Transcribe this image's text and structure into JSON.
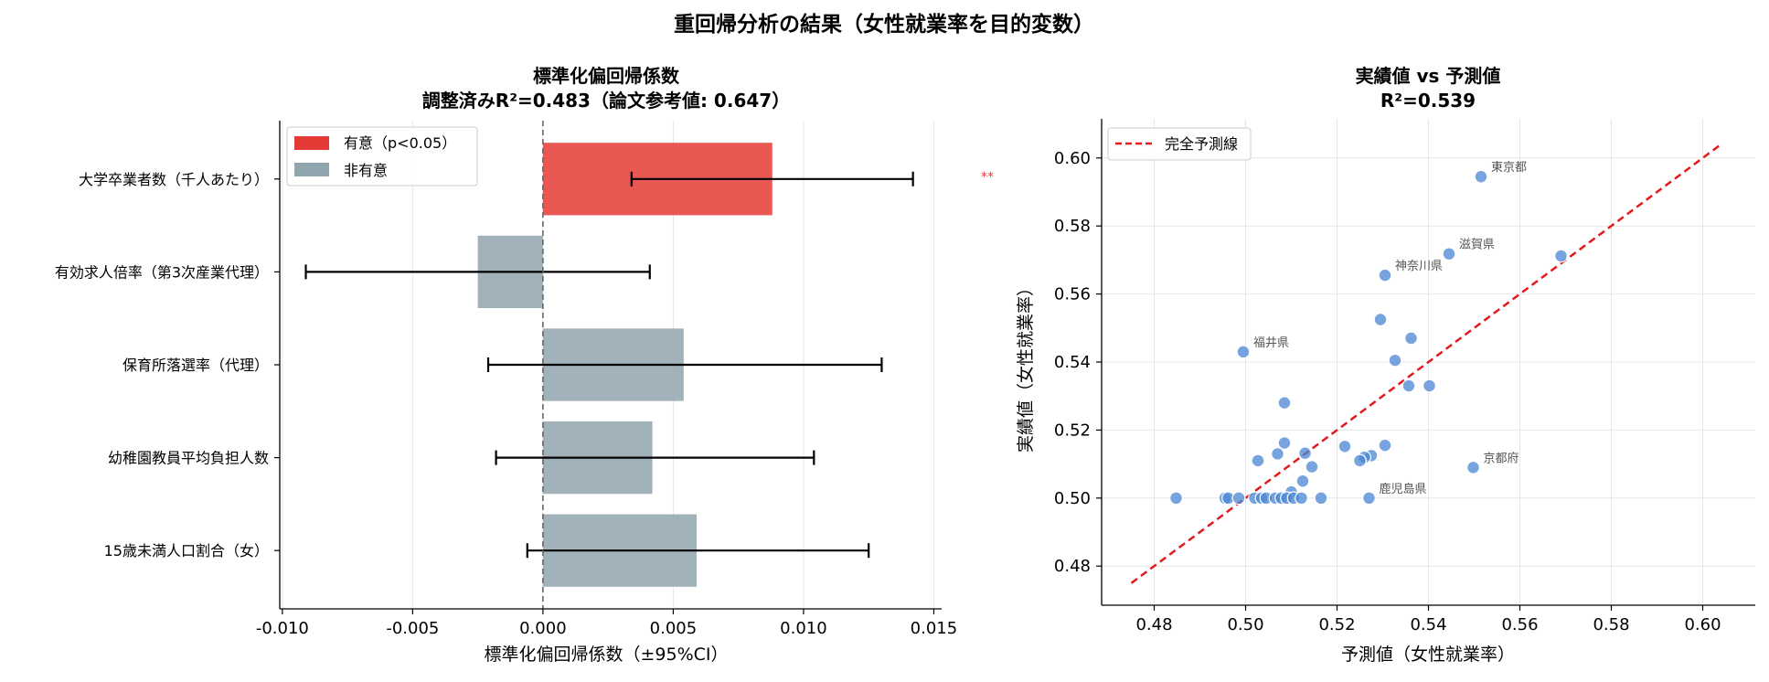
{
  "figure": {
    "title": "重回帰分析の結果（女性就業率を目的変数）"
  },
  "chart_data": [
    {
      "type": "bar",
      "orientation": "horizontal",
      "title": "標準化偏回帰係数",
      "subtitle": "調整済みR²=0.483（論文参考値: 0.647）",
      "xlabel": "標準化偏回帰係数（±95%CI）",
      "ylabel": "",
      "xlim": [
        -0.0101,
        0.0153
      ],
      "xticks": [
        -0.01,
        -0.005,
        0.0,
        0.005,
        0.01,
        0.015
      ],
      "xtick_labels": [
        "-0.010",
        "-0.005",
        "0.000",
        "0.005",
        "0.010",
        "0.015"
      ],
      "grid": true,
      "legend_position": "top-left",
      "legend": [
        {
          "label": "有意（p<0.05）",
          "color": "#e53935"
        },
        {
          "label": "非有意",
          "color": "#90a4ae"
        }
      ],
      "categories": [
        "大学卒業者数（千人あたり）",
        "有効求人倍率（第3次産業代理）",
        "保育所落選率（代理）",
        "幼稚園教員平均負担人数",
        "15歳未満人口割合（女）"
      ],
      "values": [
        0.0088,
        -0.0025,
        0.0054,
        0.0042,
        0.0059
      ],
      "ci_low": [
        0.0034,
        -0.0091,
        -0.0021,
        -0.0018,
        -0.0006
      ],
      "ci_high": [
        0.0142,
        0.0041,
        0.013,
        0.0104,
        0.0125
      ],
      "significant": [
        true,
        false,
        false,
        false,
        false
      ],
      "significance_marks": [
        "**",
        "",
        "",
        "",
        ""
      ]
    },
    {
      "type": "scatter",
      "title": "実績値 vs 予測値",
      "subtitle": "R²=0.539",
      "xlabel": "予測値（女性就業率）",
      "ylabel": "実績値（女性就業率）",
      "xlim": [
        0.4685,
        0.6115
      ],
      "ylim": [
        0.4685,
        0.6115
      ],
      "xticks": [
        0.48,
        0.5,
        0.52,
        0.54,
        0.56,
        0.58,
        0.6
      ],
      "xtick_labels": [
        "0.48",
        "0.50",
        "0.52",
        "0.54",
        "0.56",
        "0.58",
        "0.60"
      ],
      "yticks": [
        0.48,
        0.5,
        0.52,
        0.54,
        0.56,
        0.58,
        0.6
      ],
      "ytick_labels": [
        "0.48",
        "0.50",
        "0.52",
        "0.54",
        "0.56",
        "0.58",
        "0.60"
      ],
      "grid": true,
      "legend_position": "top-left",
      "legend": [
        {
          "label": "完全予測線",
          "color": "#e31a1c",
          "style": "dashed"
        }
      ],
      "perfect_line": {
        "from": [
          0.475,
          0.475
        ],
        "to": [
          0.604,
          0.604
        ]
      },
      "point_color": "#4a86d4",
      "points": [
        {
          "x": 0.5515,
          "y": 0.5945,
          "label": "東京都"
        },
        {
          "x": 0.5445,
          "y": 0.5718,
          "label": "滋賀県"
        },
        {
          "x": 0.569,
          "y": 0.5712,
          "label": ""
        },
        {
          "x": 0.5305,
          "y": 0.5655,
          "label": "神奈川県"
        },
        {
          "x": 0.4995,
          "y": 0.543,
          "label": "福井県"
        },
        {
          "x": 0.5295,
          "y": 0.5525,
          "label": ""
        },
        {
          "x": 0.5362,
          "y": 0.547,
          "label": ""
        },
        {
          "x": 0.5327,
          "y": 0.5405,
          "label": ""
        },
        {
          "x": 0.5357,
          "y": 0.533,
          "label": ""
        },
        {
          "x": 0.5402,
          "y": 0.533,
          "label": ""
        },
        {
          "x": 0.5085,
          "y": 0.528,
          "label": ""
        },
        {
          "x": 0.5085,
          "y": 0.5162,
          "label": ""
        },
        {
          "x": 0.5305,
          "y": 0.5155,
          "label": ""
        },
        {
          "x": 0.5217,
          "y": 0.5152,
          "label": ""
        },
        {
          "x": 0.513,
          "y": 0.5132,
          "label": ""
        },
        {
          "x": 0.507,
          "y": 0.513,
          "label": ""
        },
        {
          "x": 0.5275,
          "y": 0.5125,
          "label": ""
        },
        {
          "x": 0.526,
          "y": 0.512,
          "label": ""
        },
        {
          "x": 0.525,
          "y": 0.511,
          "label": ""
        },
        {
          "x": 0.5027,
          "y": 0.511,
          "label": ""
        },
        {
          "x": 0.5145,
          "y": 0.5092,
          "label": ""
        },
        {
          "x": 0.5498,
          "y": 0.509,
          "label": "京都府"
        },
        {
          "x": 0.5125,
          "y": 0.505,
          "label": ""
        },
        {
          "x": 0.51,
          "y": 0.5018,
          "label": ""
        },
        {
          "x": 0.527,
          "y": 0.5,
          "label": "鹿児島県"
        },
        {
          "x": 0.4848,
          "y": 0.5,
          "label": ""
        },
        {
          "x": 0.4955,
          "y": 0.5,
          "label": ""
        },
        {
          "x": 0.4962,
          "y": 0.5,
          "label": ""
        },
        {
          "x": 0.4985,
          "y": 0.5,
          "label": ""
        },
        {
          "x": 0.502,
          "y": 0.5,
          "label": ""
        },
        {
          "x": 0.5035,
          "y": 0.5,
          "label": ""
        },
        {
          "x": 0.5045,
          "y": 0.5,
          "label": ""
        },
        {
          "x": 0.5065,
          "y": 0.5,
          "label": ""
        },
        {
          "x": 0.5078,
          "y": 0.5,
          "label": ""
        },
        {
          "x": 0.509,
          "y": 0.5,
          "label": ""
        },
        {
          "x": 0.5105,
          "y": 0.5,
          "label": ""
        },
        {
          "x": 0.5122,
          "y": 0.5,
          "label": ""
        },
        {
          "x": 0.5165,
          "y": 0.5,
          "label": ""
        }
      ]
    }
  ]
}
